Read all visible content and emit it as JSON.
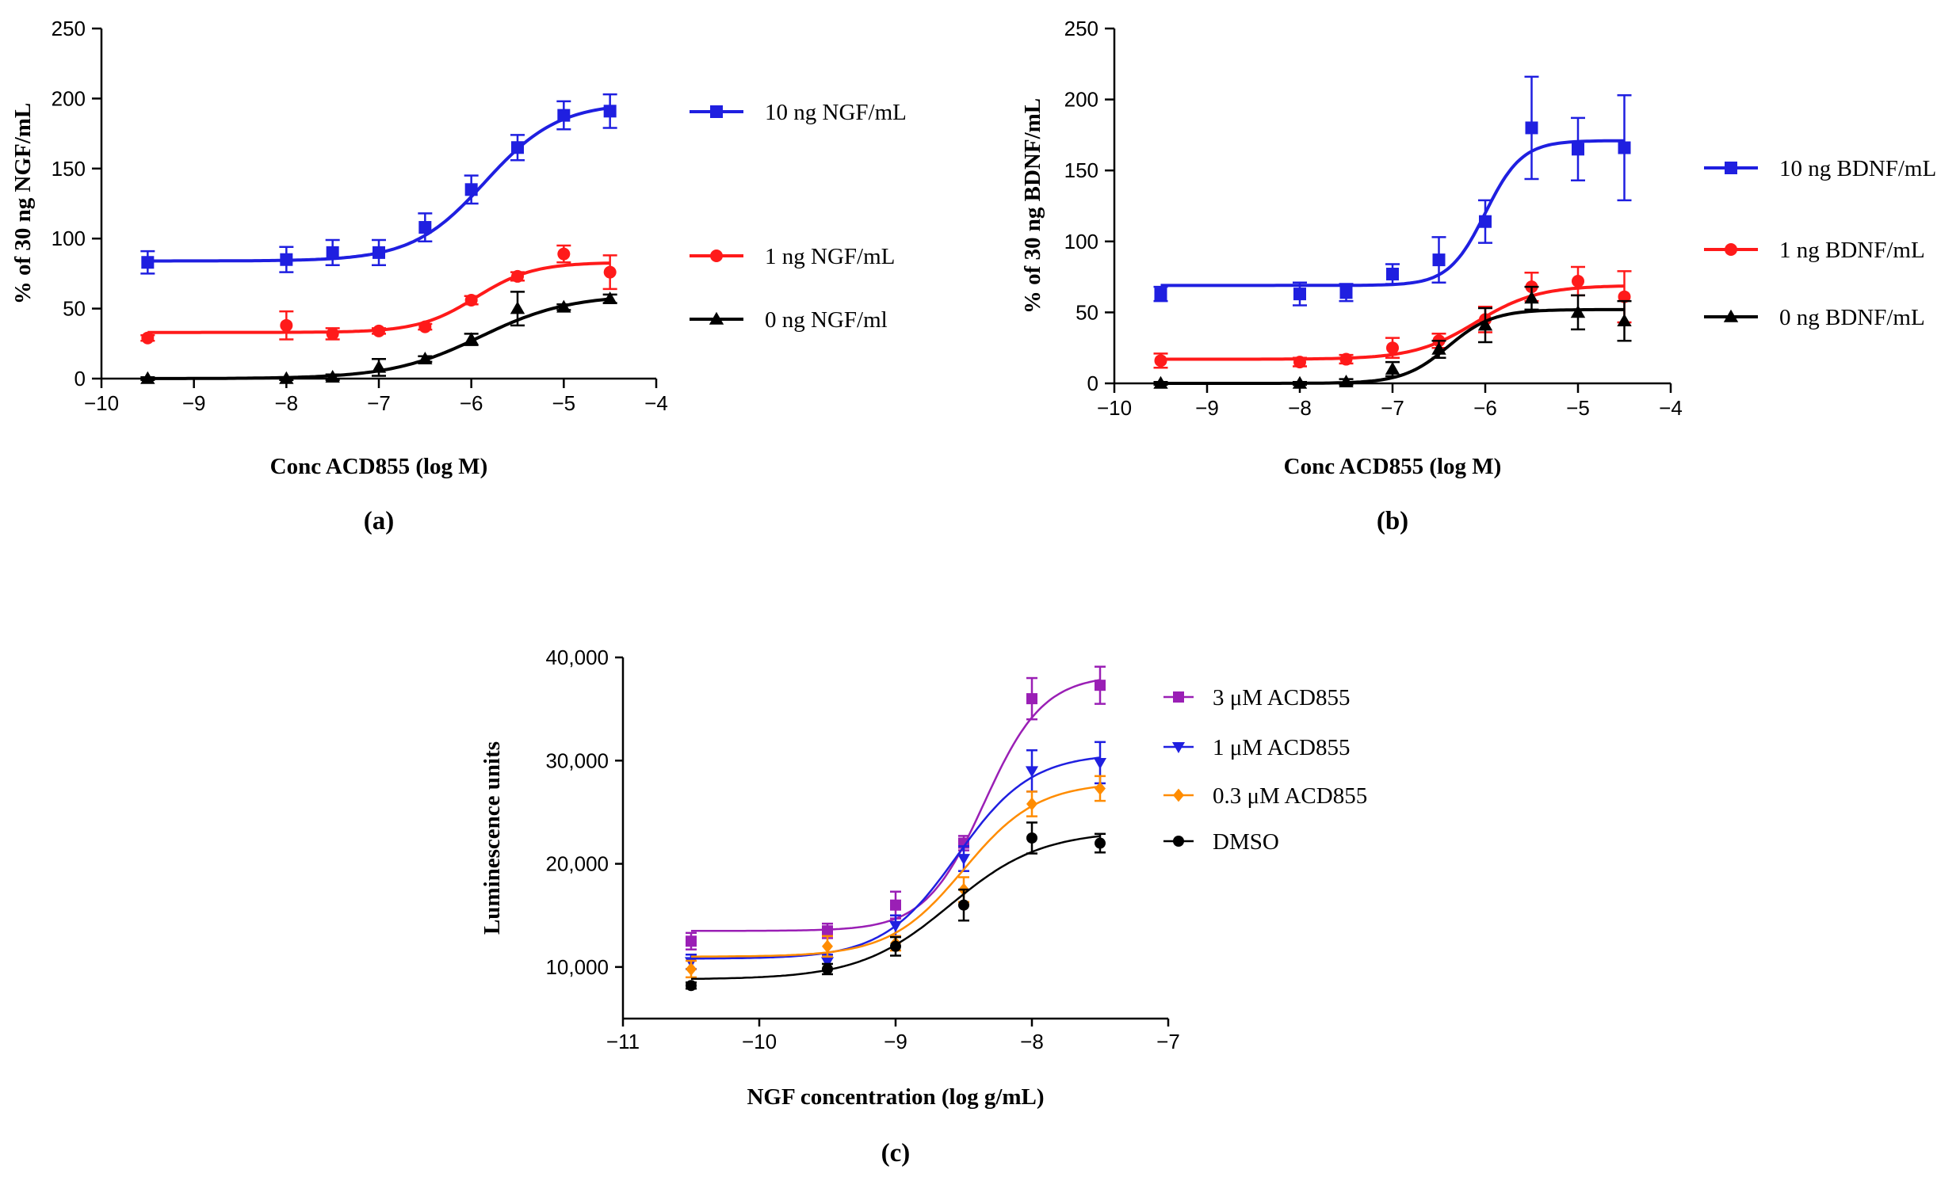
{
  "chart_data": [
    {
      "type": "scatter",
      "panel_label": "(a)",
      "xlabel": "Conc ACD855 (log M)",
      "ylabel": "% of 30 ng NGF/mL",
      "xlim": [
        -10,
        -4
      ],
      "ylim": [
        0,
        250
      ],
      "xticks": [
        -10,
        -9,
        -8,
        -7,
        -6,
        -5,
        -4
      ],
      "xtick_labels": [
        "−10",
        "−9",
        "−8",
        "−7",
        "−6",
        "−5",
        "−4"
      ],
      "yticks": [
        0,
        50,
        100,
        150,
        200,
        250
      ],
      "ytick_labels": [
        "0",
        "50",
        "100",
        "150",
        "200",
        "250"
      ],
      "series": [
        {
          "name": "10 ng  NGF/mL",
          "color": "#1f1fe0",
          "marker": "square",
          "x": [
            -9.5,
            -8,
            -7.5,
            -7,
            -6.5,
            -6,
            -5.5,
            -5,
            -4.5
          ],
          "y": [
            83,
            85,
            90,
            90,
            108,
            135,
            165,
            188,
            191
          ],
          "err": [
            8,
            9,
            9,
            9,
            10,
            10,
            9,
            10,
            12
          ],
          "fit": {
            "bottom": 84,
            "top": 197,
            "logec50": -5.85,
            "hill": 1.1
          }
        },
        {
          "name": "1 ng  NGF/mL",
          "color": "#ff1a1a",
          "marker": "circle",
          "x": [
            -9.5,
            -8,
            -7.5,
            -7,
            -6.5,
            -6,
            -5.5,
            -5,
            -4.5
          ],
          "y": [
            29,
            38,
            32,
            34,
            37,
            56,
            73,
            89,
            76
          ],
          "err": [
            2,
            10,
            4,
            2,
            2,
            3,
            3,
            6,
            12
          ],
          "fit": {
            "bottom": 33,
            "top": 83,
            "logec50": -5.95,
            "hill": 1.4
          }
        },
        {
          "name": "0 ng NGF/ml",
          "color": "#000000",
          "marker": "triangle",
          "x": [
            -9.5,
            -8,
            -7.5,
            -7,
            -6.5,
            -6,
            -5.5,
            -5,
            -4.5
          ],
          "y": [
            0,
            0,
            1,
            8,
            14,
            28,
            50,
            51,
            57
          ],
          "err": [
            1,
            1,
            2,
            6,
            2,
            4,
            12,
            2,
            3
          ],
          "fit": {
            "bottom": 0,
            "top": 60,
            "logec50": -5.9,
            "hill": 0.9
          }
        }
      ]
    },
    {
      "type": "scatter",
      "panel_label": "(b)",
      "xlabel": "Conc ACD855 (log M)",
      "ylabel": "% of 30 ng BDNF/mL",
      "xlim": [
        -10,
        -4
      ],
      "ylim": [
        0,
        250
      ],
      "xticks": [
        -10,
        -9,
        -8,
        -7,
        -6,
        -5,
        -4
      ],
      "xtick_labels": [
        "−10",
        "−9",
        "−8",
        "−7",
        "−6",
        "−5",
        "−4"
      ],
      "yticks": [
        0,
        50,
        100,
        150,
        200,
        250
      ],
      "ytick_labels": [
        "0",
        "50",
        "100",
        "150",
        "200",
        "250"
      ],
      "series": [
        {
          "name": "10 ng BDNF/mL",
          "color": "#1f1fe0",
          "marker": "square",
          "x": [
            -9.5,
            -8,
            -7.5,
            -7,
            -6.5,
            -6,
            -5.5,
            -5,
            -4.5
          ],
          "y": [
            63,
            63,
            64,
            77,
            87,
            114,
            180,
            165,
            166
          ],
          "err": [
            5,
            8,
            6,
            7,
            16,
            15,
            36,
            22,
            37
          ],
          "fit": {
            "bottom": 69,
            "top": 171,
            "logec50": -6.0,
            "hill": 2.2
          }
        },
        {
          "name": "1 ng BDNF/mL",
          "color": "#ff1a1a",
          "marker": "circle",
          "x": [
            -9.5,
            -8,
            -7.5,
            -7,
            -6.5,
            -6,
            -5.5,
            -5,
            -4.5
          ],
          "y": [
            16,
            15,
            17,
            25,
            30,
            45,
            68,
            72,
            61
          ],
          "err": [
            5,
            3,
            3,
            7,
            5,
            9,
            10,
            10,
            18
          ],
          "fit": {
            "bottom": 17,
            "top": 69,
            "logec50": -6.1,
            "hill": 1.3
          }
        },
        {
          "name": "0 ng BDNF/mL",
          "color": "#000000",
          "marker": "triangle",
          "x": [
            -9.5,
            -8,
            -7.5,
            -7,
            -6.5,
            -6,
            -5.5,
            -5,
            -4.5
          ],
          "y": [
            0,
            0,
            1,
            10,
            24,
            41,
            60,
            50,
            44
          ],
          "err": [
            1,
            1,
            2,
            5,
            6,
            12,
            8,
            12,
            14
          ],
          "fit": {
            "bottom": 0,
            "top": 52,
            "logec50": -6.4,
            "hill": 1.8
          }
        }
      ]
    },
    {
      "type": "scatter",
      "panel_label": "(c)",
      "xlabel": "NGF concentration (log g/mL)",
      "ylabel": "Luminescence units",
      "xlim": [
        -11,
        -7
      ],
      "ylim": [
        5000,
        40000
      ],
      "xticks": [
        -11,
        -10,
        -9,
        -8,
        -7
      ],
      "xtick_labels": [
        "−11",
        "−10",
        "−9",
        "−8",
        "−7"
      ],
      "yticks": [
        10000,
        20000,
        30000,
        40000
      ],
      "ytick_labels": [
        "10,000",
        "20,000",
        "30,000",
        "40,000"
      ],
      "series": [
        {
          "name": "3 μM ACD855",
          "color": "#9a1fb5",
          "marker": "square",
          "x": [
            -10.5,
            -9.5,
            -9,
            -8.5,
            -8,
            -7.5
          ],
          "y": [
            12500,
            13500,
            16000,
            22000,
            36000,
            37300
          ],
          "err": [
            800,
            700,
            1300,
            700,
            2000,
            1800
          ],
          "fit": {
            "bottom": 13500,
            "top": 38300,
            "logec50": -8.35,
            "hill": 2.0
          }
        },
        {
          "name": "1 μM  ACD855",
          "color": "#1f1fe0",
          "marker": "triangle-down",
          "x": [
            -10.5,
            -9.5,
            -9,
            -8.5,
            -8,
            -7.5
          ],
          "y": [
            10500,
            10500,
            14000,
            20500,
            29000,
            29800
          ],
          "err": [
            700,
            700,
            1000,
            1200,
            2000,
            2000
          ],
          "fit": {
            "bottom": 10800,
            "top": 30700,
            "logec50": -8.55,
            "hill": 1.6
          }
        },
        {
          "name": "0.3 μM  ACD855",
          "color": "#ff8c00",
          "marker": "diamond",
          "x": [
            -10.5,
            -9.5,
            -9,
            -8.5,
            -8,
            -7.5
          ],
          "y": [
            9800,
            12000,
            12300,
            17500,
            25800,
            27300
          ],
          "err": [
            800,
            1000,
            700,
            1200,
            1200,
            1200
          ],
          "fit": {
            "bottom": 11000,
            "top": 27900,
            "logec50": -8.5,
            "hill": 1.6
          }
        },
        {
          "name": "DMSO",
          "color": "#000000",
          "marker": "circle",
          "x": [
            -10.5,
            -9.5,
            -9,
            -8.5,
            -8,
            -7.5
          ],
          "y": [
            8200,
            9800,
            12000,
            16000,
            22500,
            22000
          ],
          "err": [
            300,
            500,
            900,
            1500,
            1500,
            900
          ],
          "fit": {
            "bottom": 8800,
            "top": 23200,
            "logec50": -8.6,
            "hill": 1.3
          }
        }
      ]
    }
  ]
}
